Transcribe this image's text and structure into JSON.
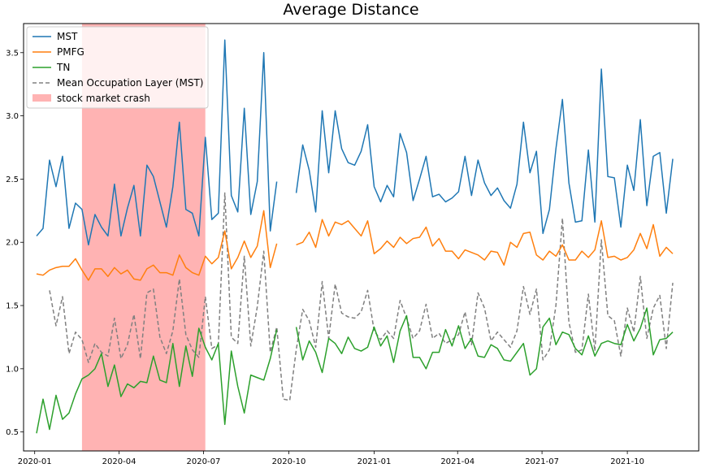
{
  "chart_data": {
    "type": "line",
    "title": "Average Distance",
    "xlabel": "",
    "ylabel": "",
    "xlim": [
      "2019-12-20",
      "2021-12-17"
    ],
    "ylim": [
      0.35,
      3.73
    ],
    "x_tick_labels": [
      "2020-01",
      "2020-04",
      "2020-07",
      "2020-10",
      "2021-01",
      "2021-04",
      "2021-07",
      "2021-10"
    ],
    "x_tick_dates": [
      "2020-01-01",
      "2020-04-01",
      "2020-07-01",
      "2020-10-01",
      "2021-01-01",
      "2021-04-01",
      "2021-07-01",
      "2021-10-01"
    ],
    "y_ticks": [
      0.5,
      1.0,
      1.5,
      2.0,
      2.5,
      3.0,
      3.5
    ],
    "y_tick_labels": [
      "0.5",
      "1.0",
      "1.5",
      "2.0",
      "2.5",
      "3.0",
      "3.5"
    ],
    "grid": false,
    "legend_position": "top-left",
    "shaded_region": {
      "label": "stock market crash",
      "start": "2020-02-21",
      "end": "2020-07-03",
      "color": "#ffb3b3"
    },
    "series": [
      {
        "name": "MST",
        "color": "#1f77b4",
        "style": "solid",
        "x": [
          "2020-01-03",
          "2020-01-10",
          "2020-01-17",
          "2020-01-24",
          "2020-01-31",
          "2020-02-07",
          "2020-02-14",
          "2020-02-21",
          "2020-02-28",
          "2020-03-06",
          "2020-03-13",
          "2020-03-20",
          "2020-03-27",
          "2020-04-03",
          "2020-04-10",
          "2020-04-17",
          "2020-04-24",
          "2020-05-01",
          "2020-05-08",
          "2020-05-15",
          "2020-05-22",
          "2020-05-29",
          "2020-06-05",
          "2020-06-12",
          "2020-06-19",
          "2020-06-26",
          "2020-07-03",
          "2020-07-10",
          "2020-07-17",
          "2020-07-24",
          "2020-07-31",
          "2020-08-07",
          "2020-08-14",
          "2020-08-21",
          "2020-08-28",
          "2020-09-04",
          "2020-09-11",
          "2020-09-18",
          "2020-09-25",
          "2020-10-02",
          "2020-10-09",
          "2020-10-16",
          "2020-10-23",
          "2020-10-30",
          "2020-11-06",
          "2020-11-13",
          "2020-11-20",
          "2020-11-27",
          "2020-12-04",
          "2020-12-11",
          "2020-12-18",
          "2020-12-25",
          "2021-01-01",
          "2021-01-08",
          "2021-01-15",
          "2021-01-22",
          "2021-01-29",
          "2021-02-05",
          "2021-02-12",
          "2021-02-19",
          "2021-02-26",
          "2021-03-05",
          "2021-03-12",
          "2021-03-19",
          "2021-03-26",
          "2021-04-02",
          "2021-04-09",
          "2021-04-16",
          "2021-04-23",
          "2021-04-30",
          "2021-05-07",
          "2021-05-14",
          "2021-05-21",
          "2021-05-28",
          "2021-06-04",
          "2021-06-11",
          "2021-06-18",
          "2021-06-25",
          "2021-07-02",
          "2021-07-09",
          "2021-07-16",
          "2021-07-23",
          "2021-07-30",
          "2021-08-06",
          "2021-08-13",
          "2021-08-20",
          "2021-08-27",
          "2021-09-03",
          "2021-09-10",
          "2021-09-17",
          "2021-09-24",
          "2021-10-01",
          "2021-10-08",
          "2021-10-15",
          "2021-10-22",
          "2021-10-29",
          "2021-11-05",
          "2021-11-12",
          "2021-11-19",
          "2021-11-26"
        ],
        "y": [
          2.05,
          2.11,
          2.65,
          2.44,
          2.68,
          2.11,
          2.31,
          2.26,
          1.98,
          2.22,
          2.12,
          2.05,
          2.46,
          2.05,
          2.27,
          2.45,
          2.05,
          2.61,
          2.52,
          2.32,
          2.12,
          2.44,
          2.95,
          2.26,
          2.23,
          2.05,
          2.83,
          2.18,
          2.23,
          3.6,
          2.37,
          2.24,
          3.06,
          2.22,
          2.48,
          3.5,
          2.09,
          2.48,
          null,
          null,
          2.39,
          2.77,
          2.57,
          2.24,
          3.04,
          2.55,
          3.04,
          2.74,
          2.63,
          2.61,
          2.72,
          2.93,
          2.44,
          2.32,
          2.45,
          2.36,
          2.86,
          2.71,
          2.33,
          2.5,
          2.68,
          2.36,
          2.38,
          2.32,
          2.35,
          2.4,
          2.68,
          2.37,
          2.65,
          2.47,
          2.37,
          2.43,
          2.33,
          2.27,
          2.46,
          2.95,
          2.55,
          2.72,
          2.07,
          2.26,
          2.74,
          3.13,
          2.47,
          2.16,
          2.17,
          2.73,
          2.16,
          3.37,
          2.52,
          2.51,
          2.12,
          2.61,
          2.41,
          2.97,
          2.29,
          2.68,
          2.71,
          2.23,
          2.66,
          null
        ],
        "note_end": null
      },
      {
        "name": "PMFG",
        "color": "#ff7f0e",
        "style": "solid",
        "y": [
          1.75,
          1.74,
          1.78,
          1.8,
          1.81,
          1.81,
          1.87,
          1.78,
          1.7,
          1.79,
          1.79,
          1.73,
          1.8,
          1.75,
          1.78,
          1.71,
          1.7,
          1.79,
          1.82,
          1.76,
          1.76,
          1.74,
          1.9,
          1.8,
          1.76,
          1.74,
          1.89,
          1.83,
          1.88,
          2.09,
          1.79,
          1.88,
          2.01,
          1.88,
          1.97,
          2.25,
          1.8,
          1.99,
          null,
          null,
          1.98,
          2.0,
          2.08,
          1.96,
          2.18,
          2.05,
          2.16,
          2.14,
          2.17,
          2.11,
          2.05,
          2.17,
          1.91,
          1.95,
          2.01,
          1.96,
          2.04,
          1.99,
          2.03,
          2.04,
          2.12,
          1.97,
          2.03,
          1.93,
          1.93,
          1.87,
          1.94,
          1.92,
          1.9,
          1.86,
          1.93,
          1.92,
          1.82,
          2.0,
          1.96,
          2.07,
          2.08,
          1.9,
          1.86,
          1.93,
          1.89,
          1.98,
          1.86,
          1.86,
          1.93,
          1.88,
          1.94,
          2.17,
          1.88,
          1.89,
          1.86,
          1.88,
          1.94,
          2.07,
          1.95,
          2.14,
          1.89,
          1.96,
          1.91,
          null
        ]
      },
      {
        "name": "TN",
        "color": "#2ca02c",
        "style": "solid",
        "y": [
          0.49,
          0.76,
          0.52,
          0.79,
          0.6,
          0.65,
          0.8,
          0.92,
          0.95,
          1.0,
          1.12,
          0.86,
          1.03,
          0.78,
          0.88,
          0.85,
          0.9,
          0.89,
          1.1,
          0.91,
          0.89,
          1.2,
          0.86,
          1.18,
          0.94,
          1.32,
          1.17,
          1.07,
          1.2,
          0.56,
          1.14,
          0.86,
          0.65,
          0.95,
          0.93,
          0.91,
          1.08,
          1.31,
          null,
          null,
          1.33,
          1.07,
          1.22,
          1.13,
          0.97,
          1.24,
          1.2,
          1.12,
          1.25,
          1.16,
          1.14,
          1.17,
          1.33,
          1.18,
          1.26,
          1.05,
          1.3,
          1.42,
          1.09,
          1.09,
          1.0,
          1.13,
          1.13,
          1.31,
          1.18,
          1.34,
          1.16,
          1.24,
          1.1,
          1.09,
          1.19,
          1.16,
          1.07,
          1.06,
          1.13,
          1.2,
          0.95,
          1.0,
          1.33,
          1.4,
          1.19,
          1.29,
          1.27,
          1.16,
          1.11,
          1.26,
          1.1,
          1.2,
          1.22,
          1.2,
          1.19,
          1.35,
          1.22,
          1.32,
          1.48,
          1.11,
          1.23,
          1.24,
          1.29,
          null
        ]
      },
      {
        "name": "Mean Occupation Layer (MST)",
        "color": "#808080",
        "style": "dashed",
        "y": [
          null,
          null,
          1.62,
          1.34,
          1.57,
          1.12,
          1.29,
          1.23,
          1.05,
          1.2,
          1.13,
          1.1,
          1.4,
          1.08,
          1.19,
          1.43,
          1.08,
          1.6,
          1.63,
          1.25,
          1.12,
          1.3,
          1.71,
          1.27,
          1.15,
          1.09,
          1.57,
          1.16,
          1.19,
          2.39,
          1.25,
          1.2,
          1.89,
          1.18,
          1.49,
          1.93,
          1.13,
          1.33,
          0.76,
          0.75,
          1.15,
          1.47,
          1.38,
          1.17,
          1.69,
          1.24,
          1.67,
          1.44,
          1.41,
          1.4,
          1.45,
          1.62,
          1.3,
          1.23,
          1.3,
          1.24,
          1.54,
          1.4,
          1.24,
          1.3,
          1.51,
          1.24,
          1.28,
          1.2,
          1.23,
          1.27,
          1.45,
          1.19,
          1.6,
          1.48,
          1.22,
          1.29,
          1.23,
          1.17,
          1.3,
          1.65,
          1.43,
          1.63,
          1.07,
          1.15,
          1.5,
          2.19,
          1.37,
          1.13,
          1.15,
          1.59,
          1.14,
          2.02,
          1.42,
          1.38,
          1.1,
          1.48,
          1.29,
          1.73,
          1.24,
          1.48,
          1.58,
          1.16,
          1.68,
          null
        ]
      }
    ],
    "legend": [
      "MST",
      "PMFG",
      "TN",
      "Mean Occupation Layer (MST)",
      "stock market crash"
    ]
  }
}
